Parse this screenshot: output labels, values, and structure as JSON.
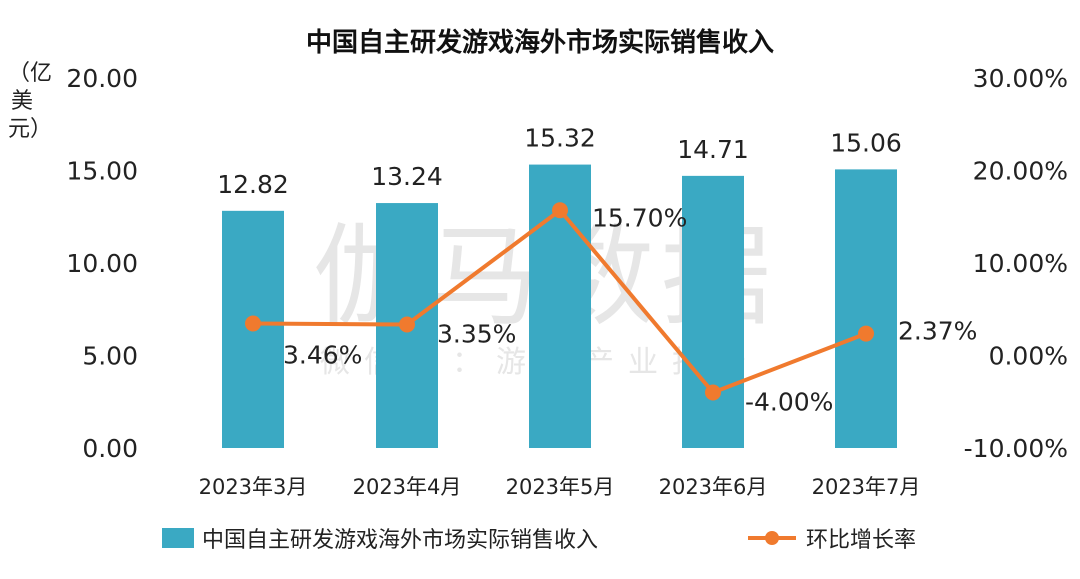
{
  "title": "中国自主研发游戏海外市场实际销售收入",
  "y_unit": "（亿美元）",
  "watermark": {
    "main": "伽马数据",
    "sub": "微信号：游戏产业报告"
  },
  "chart_data": {
    "type": "bar+line",
    "categories": [
      "2023年3月",
      "2023年4月",
      "2023年5月",
      "2023年6月",
      "2023年7月"
    ],
    "series": [
      {
        "name": "中国自主研发游戏海外市场实际销售收入",
        "type": "bar",
        "axis": "left",
        "values": [
          12.82,
          13.24,
          15.32,
          14.71,
          15.06
        ],
        "labels": [
          "12.82",
          "13.24",
          "15.32",
          "14.71",
          "15.06"
        ],
        "color": "#3aa9c3"
      },
      {
        "name": "环比增长率",
        "type": "line",
        "axis": "right",
        "values": [
          3.46,
          3.35,
          15.7,
          -4.0,
          2.37
        ],
        "labels": [
          "3.46%",
          "3.35%",
          "15.70%",
          "-4.00%",
          "2.37%"
        ],
        "color": "#f07a2e"
      }
    ],
    "left_axis": {
      "range": [
        0,
        20
      ],
      "ticks": [
        "0.00",
        "5.00",
        "10.00",
        "15.00",
        "20.00"
      ]
    },
    "right_axis": {
      "range": [
        -10,
        30
      ],
      "ticks": [
        "-10.00%",
        "0.00%",
        "10.00%",
        "20.00%",
        "30.00%"
      ]
    },
    "grid": false,
    "legend_position": "bottom"
  }
}
